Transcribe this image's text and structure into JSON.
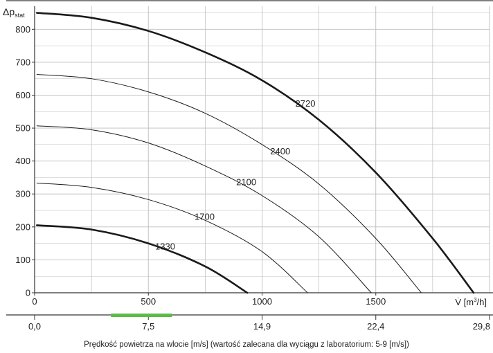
{
  "chart_data": {
    "type": "line",
    "y_label_main": "Δp",
    "y_label_sub": "stat",
    "x_label_symbol": "V̇",
    "x_label_unit_prefix": "[m",
    "x_label_unit_sup": "3",
    "x_label_unit_suffix": "/h]",
    "xlim": [
      0,
      2000
    ],
    "ylim": [
      0,
      870
    ],
    "x_ticks": [
      0,
      500,
      1000,
      1500
    ],
    "y_ticks": [
      0,
      100,
      200,
      300,
      400,
      500,
      600,
      700,
      800
    ],
    "x_grid_minor_step": 250,
    "y_grid_step": 50,
    "grid": true,
    "series": [
      {
        "name": "2720",
        "width": 2.6,
        "x": [
          0,
          250,
          500,
          750,
          1000,
          1250,
          1500,
          1750,
          1930
        ],
        "y": [
          850,
          835,
          795,
          730,
          645,
          525,
          365,
          165,
          0
        ]
      },
      {
        "name": "2400",
        "width": 1.0,
        "x": [
          0,
          250,
          500,
          750,
          1000,
          1250,
          1500,
          1700
        ],
        "y": [
          663,
          650,
          610,
          545,
          450,
          330,
          165,
          0
        ]
      },
      {
        "name": "2100",
        "width": 1.0,
        "x": [
          0,
          250,
          500,
          750,
          1000,
          1250,
          1480
        ],
        "y": [
          507,
          495,
          455,
          385,
          295,
          170,
          0
        ]
      },
      {
        "name": "1700",
        "width": 1.0,
        "x": [
          0,
          250,
          500,
          750,
          1000,
          1200
        ],
        "y": [
          333,
          320,
          283,
          220,
          125,
          0
        ]
      },
      {
        "name": "1330",
        "width": 2.6,
        "x": [
          0,
          250,
          500,
          750,
          935
        ],
        "y": [
          205,
          192,
          150,
          80,
          0
        ]
      }
    ],
    "secondary_axis": {
      "ticks": [
        "0,0",
        "7,5",
        "14,9",
        "22,4",
        "29,8"
      ],
      "tick_positions_flow": [
        0,
        500,
        1000,
        1500,
        2000
      ],
      "recommended_range_ms": [
        5,
        9
      ],
      "recommended_color": "#5dba47",
      "label": "Prędkość powietrza na wlocie [m/s] (wartość zalecana dla wyciągu z laboratorium: 5-9 [m/s])"
    }
  }
}
